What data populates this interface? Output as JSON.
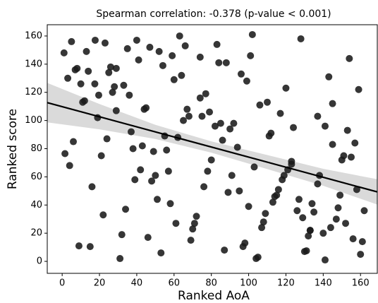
{
  "chart_data": {
    "type": "scatter",
    "title": "Spearman correlation: -0.378 (p-value < 0.001)",
    "xlabel": "Ranked AoA",
    "ylabel": "Ranked score",
    "color": "#1a1a1a",
    "line_color": "#000000",
    "band_color": "#d3d3d3",
    "xlim": [
      -8,
      169
    ],
    "ylim": [
      -8.5,
      168
    ],
    "xticks": [
      0,
      20,
      40,
      60,
      80,
      100,
      120,
      140,
      160
    ],
    "yticks": [
      0,
      20,
      40,
      60,
      80,
      100,
      120,
      140,
      160
    ],
    "x": [
      1,
      1.5,
      4,
      5,
      6,
      7,
      8,
      3,
      9,
      10,
      11,
      12,
      13,
      14,
      15,
      16,
      17.5,
      17.7,
      19,
      19.6,
      21,
      22,
      23,
      24,
      25,
      26,
      27,
      28,
      29,
      29,
      31,
      32,
      33,
      34,
      35,
      36,
      37,
      38,
      39,
      40,
      41,
      42,
      43,
      44,
      45,
      46,
      47,
      48,
      49,
      50,
      51,
      52,
      53,
      54,
      55,
      56,
      57,
      58,
      59,
      60,
      61,
      62,
      63,
      64,
      65,
      66,
      67,
      68,
      69,
      70,
      71,
      72,
      74,
      74,
      75,
      76,
      77,
      78,
      79,
      80,
      82,
      83,
      84,
      85,
      86,
      87,
      88,
      89,
      90,
      91,
      92,
      94,
      95,
      96,
      97,
      98,
      99,
      100,
      101,
      102,
      103,
      104,
      105,
      106,
      107,
      108,
      109,
      110,
      111,
      112,
      113,
      114,
      115,
      116,
      117,
      118,
      119,
      120,
      121,
      123,
      123,
      124,
      126,
      127,
      128,
      129,
      130,
      131,
      132,
      133,
      133,
      134,
      135,
      137,
      137,
      138,
      140,
      141,
      141,
      143,
      144,
      145,
      145,
      147,
      148,
      149,
      150,
      151,
      152,
      153,
      154,
      155,
      156,
      157,
      158,
      159,
      160,
      161,
      162
    ],
    "values": [
      148,
      76.5,
      68,
      156,
      85,
      136,
      137,
      130,
      11,
      126,
      113,
      114,
      149,
      135,
      10.5,
      53,
      126,
      157,
      102,
      118,
      75,
      33,
      155,
      87,
      134,
      138,
      120,
      124,
      137,
      107,
      2,
      19,
      125,
      37,
      151,
      118,
      92,
      80,
      58,
      157,
      143,
      65,
      82,
      108,
      109,
      17,
      152,
      57,
      78,
      61,
      44,
      149,
      6,
      139,
      89,
      79,
      64,
      41,
      146,
      129,
      27,
      88,
      160,
      132,
      100,
      153,
      108,
      103,
      15,
      23,
      27,
      32,
      145,
      116,
      103,
      53,
      119,
      64,
      106,
      72,
      96,
      154,
      141,
      98,
      86,
      8,
      141,
      49,
      94,
      61,
      98,
      81,
      50,
      133,
      10.5,
      13,
      128,
      39,
      146,
      161,
      67,
      2,
      3,
      111,
      24,
      28,
      34,
      113,
      89,
      91,
      42,
      46,
      47,
      51,
      105,
      58,
      61,
      123,
      65,
      69,
      71,
      95,
      36,
      44,
      158,
      31,
      7,
      7.5,
      18,
      22,
      22,
      41,
      35,
      103,
      55,
      61,
      20,
      1,
      96,
      131,
      24,
      83,
      112,
      30,
      38,
      47,
      72,
      75,
      27,
      93,
      144,
      74,
      16,
      84,
      51,
      122,
      5,
      14,
      36
    ],
    "fit": {
      "x": [
        -8,
        169
      ],
      "values": [
        112.7,
        49.3
      ]
    },
    "band": {
      "x": [
        -8,
        20,
        50,
        80,
        110,
        140,
        169
      ],
      "lower": [
        98.7,
        93.7,
        86.9,
        77.2,
        65.5,
        53.7,
        40.3
      ],
      "upper": [
        126.7,
        111.7,
        96.9,
        85.2,
        75.5,
        65.7,
        58.3
      ]
    }
  }
}
